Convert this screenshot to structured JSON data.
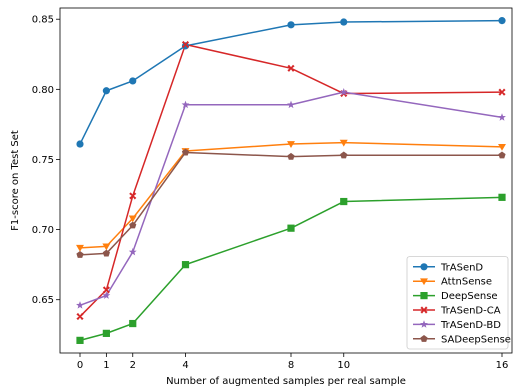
{
  "chart_data": {
    "type": "line",
    "title": "",
    "xlabel": "Number of augmented samples per real sample",
    "ylabel": "F1-score on Test Set",
    "x": [
      0,
      1,
      2,
      4,
      8,
      10,
      16
    ],
    "x_ticks": [
      0,
      1,
      2,
      4,
      8,
      10,
      16
    ],
    "x_tick_labels": [
      "0",
      "1",
      "2",
      "4",
      "8",
      "10",
      "16"
    ],
    "x_scale": "categorical-evenly-spaced-by-value-0-1-2-4-8-10-16",
    "y_ticks": [
      0.65,
      0.7,
      0.75,
      0.8,
      0.85
    ],
    "y_tick_labels": [
      "0.65",
      "0.70",
      "0.75",
      "0.80",
      "0.85"
    ],
    "ylim": [
      0.612,
      0.858
    ],
    "grid": false,
    "legend_position": "bottom-right",
    "series": [
      {
        "name": "TrASenD",
        "color": "#1f77b4",
        "marker": "circle",
        "values": [
          0.761,
          0.799,
          0.806,
          0.831,
          0.846,
          0.848,
          0.849
        ]
      },
      {
        "name": "AttnSense",
        "color": "#ff7f0e",
        "marker": "triangle-down",
        "values": [
          0.687,
          0.688,
          0.708,
          0.756,
          0.761,
          0.762,
          0.759
        ]
      },
      {
        "name": "DeepSense",
        "color": "#2ca02c",
        "marker": "square",
        "values": [
          0.621,
          0.626,
          0.633,
          0.675,
          0.701,
          0.72,
          0.723
        ]
      },
      {
        "name": "TrASenD-CA",
        "color": "#d62728",
        "marker": "x",
        "values": [
          0.638,
          0.657,
          0.724,
          0.832,
          0.815,
          0.797,
          0.798
        ]
      },
      {
        "name": "TrASenD-BD",
        "color": "#9467bd",
        "marker": "star",
        "values": [
          0.646,
          0.653,
          0.684,
          0.789,
          0.789,
          0.798,
          0.78
        ]
      },
      {
        "name": "SADeepSense",
        "color": "#8c564b",
        "marker": "pentagon",
        "values": [
          0.682,
          0.683,
          0.703,
          0.755,
          0.752,
          0.753,
          0.753
        ]
      }
    ]
  }
}
